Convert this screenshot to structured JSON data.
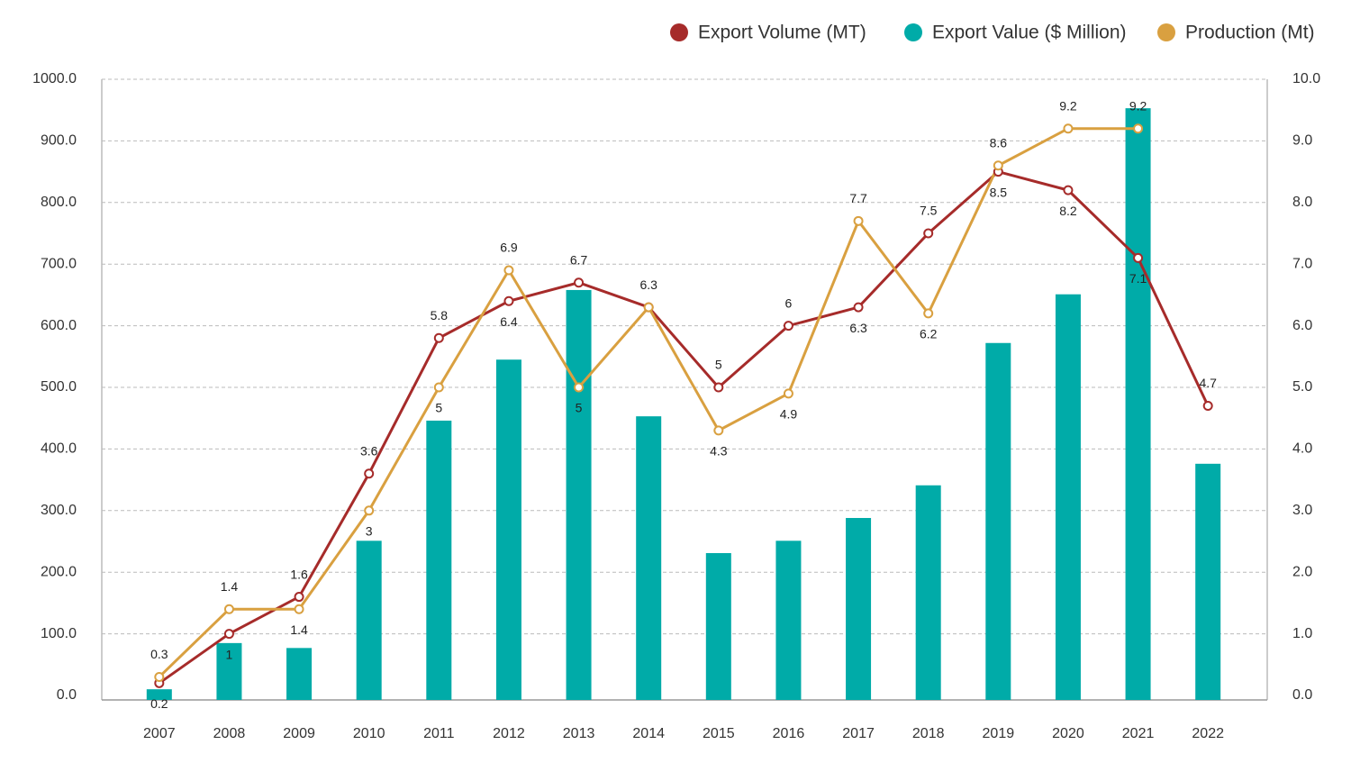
{
  "chart_data": {
    "type": "bar_line",
    "categories": [
      "2007",
      "2008",
      "2009",
      "2010",
      "2011",
      "2012",
      "2013",
      "2014",
      "2015",
      "2016",
      "2017",
      "2018",
      "2019",
      "2020",
      "2021",
      "2022"
    ],
    "series": [
      {
        "name": "Export Volume (MT)",
        "color": "#a62b2a",
        "type": "line",
        "axis": "y2",
        "values": [
          0.2,
          1,
          1.6,
          3.6,
          5.8,
          6.4,
          6.7,
          6.3,
          5,
          6,
          6.3,
          7.5,
          8.5,
          8.2,
          7.1,
          4.7
        ]
      },
      {
        "name": "Export Value ($ Million)",
        "color": "#00aba8",
        "type": "bar",
        "values": [
          10,
          85,
          77,
          251,
          446,
          545,
          658,
          453,
          231,
          251,
          288,
          341,
          572,
          651,
          953,
          376
        ]
      },
      {
        "name": "Production (Mt)",
        "color": "#d9a040",
        "type": "line",
        "axis": "y2",
        "values": [
          0.3,
          1.4,
          1.4,
          3,
          5,
          6.9,
          5,
          6.3,
          4.3,
          4.9,
          7.7,
          6.2,
          8.6,
          9.2,
          9.2,
          null
        ]
      }
    ],
    "ylim": [
      0,
      1000
    ],
    "yticks": [
      {
        "value": 0,
        "label": "0.0"
      },
      {
        "value": 100,
        "label": "100.0"
      },
      {
        "value": 200,
        "label": "200.0"
      },
      {
        "value": 300,
        "label": "300.0"
      },
      {
        "value": 400,
        "label": "400.0"
      },
      {
        "value": 500,
        "label": "500.0"
      },
      {
        "value": 600,
        "label": "600.0"
      },
      {
        "value": 700,
        "label": "700.0"
      },
      {
        "value": 800,
        "label": "800.0"
      },
      {
        "value": 900,
        "label": "900.0"
      },
      {
        "value": 1000,
        "label": "1000.0"
      }
    ],
    "y2lim": [
      0,
      10
    ],
    "y2ticks": [
      {
        "value": 0,
        "label": "0.0"
      },
      {
        "value": 1,
        "label": "1.0"
      },
      {
        "value": 2,
        "label": "2.0"
      },
      {
        "value": 3,
        "label": "3.0"
      },
      {
        "value": 4,
        "label": "4.0"
      },
      {
        "value": 5,
        "label": "5.0"
      },
      {
        "value": 6,
        "label": "6.0"
      },
      {
        "value": 7,
        "label": "7.0"
      },
      {
        "value": 8,
        "label": "8.0"
      },
      {
        "value": 9,
        "label": "9.0"
      },
      {
        "value": 10,
        "label": "10.0"
      }
    ],
    "grid": true,
    "legend": "top-right"
  }
}
